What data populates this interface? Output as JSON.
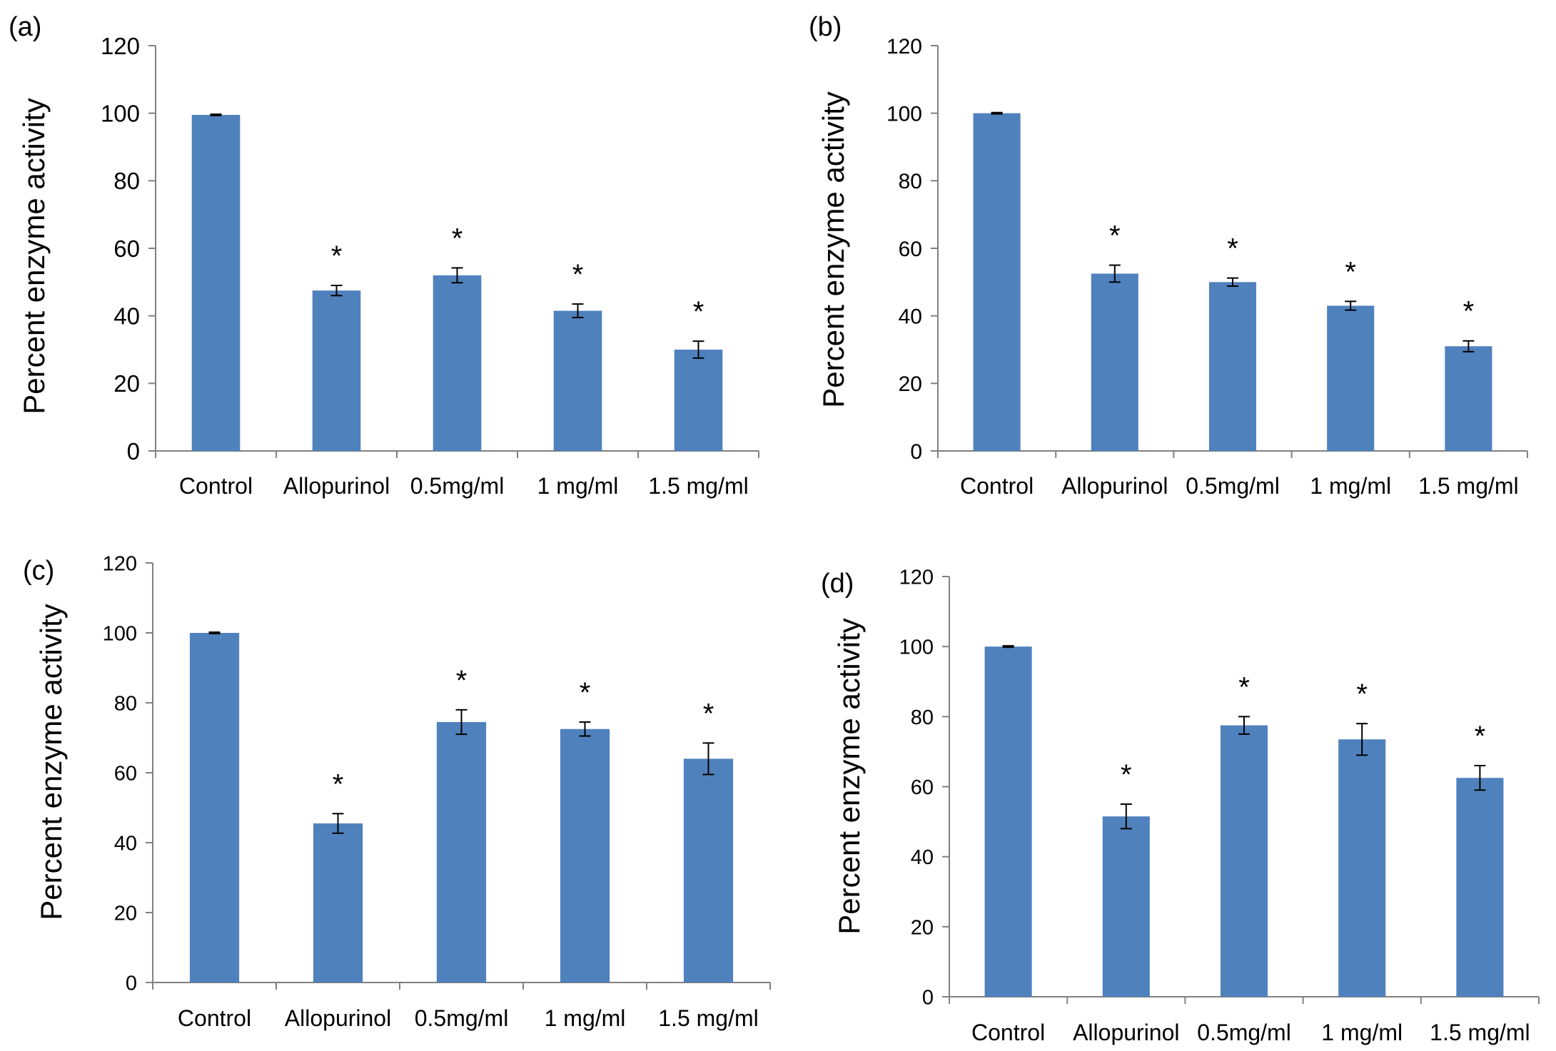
{
  "colors": {
    "bar": "#4f81bd",
    "axis": "#808080",
    "text": "#000000"
  },
  "chart_data": [
    {
      "type": "bar",
      "panel_label": "(a)",
      "categories": [
        "Control",
        "Allopurinol",
        "0.5mg/ml",
        "1 mg/ml",
        "1.5 mg/ml"
      ],
      "values": [
        99.5,
        47.5,
        52,
        41.5,
        30
      ],
      "errors": [
        0.2,
        1.5,
        2.2,
        2,
        2.5
      ],
      "significance": [
        "",
        "*",
        "*",
        "*",
        "*"
      ],
      "ylabel": "Percent enzyme activity",
      "ylim": [
        0,
        120
      ],
      "yticks": [
        0,
        20,
        40,
        60,
        80,
        100,
        120
      ],
      "grid": false,
      "legend": "none"
    },
    {
      "type": "bar",
      "panel_label": "(b)",
      "categories": [
        "Control",
        "Allopurinol",
        "0.5mg/ml",
        "1 mg/ml",
        "1.5 mg/ml"
      ],
      "values": [
        100,
        52.5,
        50,
        43,
        31
      ],
      "errors": [
        0.2,
        2.5,
        1.2,
        1.3,
        1.6
      ],
      "significance": [
        "",
        "*",
        "*",
        "*",
        "*"
      ],
      "ylabel": "Percent enzyme activity",
      "ylim": [
        0,
        120
      ],
      "yticks": [
        0,
        20,
        40,
        60,
        80,
        100,
        120
      ],
      "grid": false,
      "legend": "none"
    },
    {
      "type": "bar",
      "panel_label": "(c)",
      "categories": [
        "Control",
        "Allopurinol",
        "0.5mg/ml",
        "1 mg/ml",
        "1.5 mg/ml"
      ],
      "values": [
        100,
        45.5,
        74.5,
        72.5,
        64
      ],
      "errors": [
        0.2,
        2.8,
        3.5,
        2,
        4.5
      ],
      "significance": [
        "",
        "*",
        "*",
        "*",
        "*"
      ],
      "ylabel": "Percent enzyme activity",
      "ylim": [
        0,
        120
      ],
      "yticks": [
        0,
        20,
        40,
        60,
        80,
        100,
        120
      ],
      "grid": false,
      "legend": "none"
    },
    {
      "type": "bar",
      "panel_label": "(d)",
      "categories": [
        "Control",
        "Allopurinol",
        "0.5mg/ml",
        "1 mg/ml",
        "1.5 mg/ml"
      ],
      "values": [
        100,
        51.5,
        77.5,
        73.5,
        62.5
      ],
      "errors": [
        0.2,
        3.5,
        2.5,
        4.5,
        3.5
      ],
      "significance": [
        "",
        "*",
        "*",
        "*",
        "*"
      ],
      "ylabel": "Percent enzyme activity",
      "ylim": [
        0,
        120
      ],
      "yticks": [
        0,
        20,
        40,
        60,
        80,
        100,
        120
      ],
      "grid": false,
      "legend": "none"
    }
  ]
}
